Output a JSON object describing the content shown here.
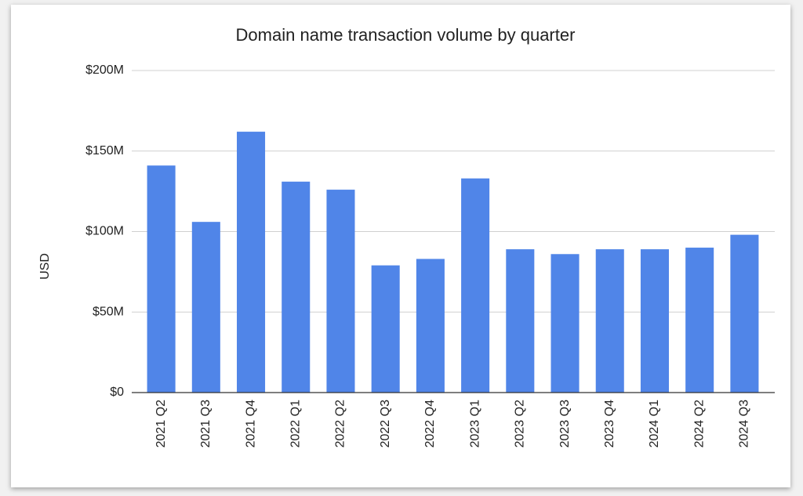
{
  "chart_data": {
    "type": "bar",
    "title": "Domain name transaction volume by quarter",
    "y_label": "USD",
    "categories": [
      "2021 Q2",
      "2021 Q3",
      "2021 Q4",
      "2022 Q1",
      "2022 Q2",
      "2022 Q3",
      "2022 Q4",
      "2023 Q1",
      "2023 Q2",
      "2023 Q3",
      "2023 Q4",
      "2024 Q1",
      "2024 Q2",
      "2024 Q3"
    ],
    "values": [
      141000000,
      106000000,
      162000000,
      131000000,
      126000000,
      79000000,
      83000000,
      133000000,
      89000000,
      86000000,
      89000000,
      89000000,
      90000000,
      98000000
    ],
    "color": "#5085e8",
    "ylim": [
      0,
      200000000
    ],
    "yticks": [
      {
        "value": 0,
        "label": "$0"
      },
      {
        "value": 50000000,
        "label": "$50M"
      },
      {
        "value": 100000000,
        "label": "$100M"
      },
      {
        "value": 150000000,
        "label": "$150M"
      },
      {
        "value": 200000000,
        "label": "$200M"
      }
    ],
    "grid": true
  }
}
